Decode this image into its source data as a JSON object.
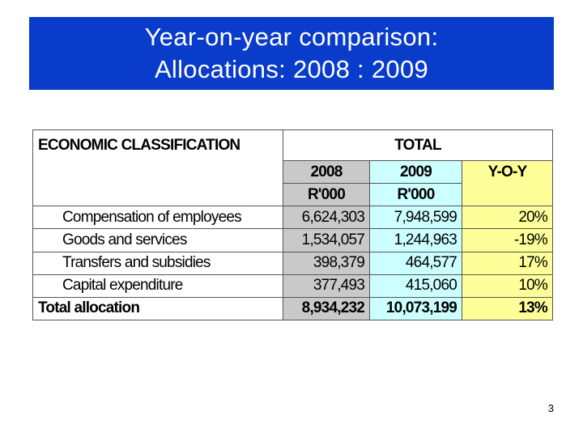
{
  "title": {
    "line1": "Year-on-year comparison:",
    "line2": "Allocations: 2008 : 2009"
  },
  "table": {
    "classification_header": "ECONOMIC CLASSIFICATION",
    "total_header": "TOTAL",
    "year_2008": "2008",
    "year_2009": "2009",
    "yoy": "Y-O-Y",
    "unit_2008": "R'000",
    "unit_2009": "R'000",
    "rows": [
      {
        "label": "Compensation of employees",
        "v2008": "6,624,303",
        "v2009": "7,948,599",
        "yoy": "20%"
      },
      {
        "label": "Goods and services",
        "v2008": "1,534,057",
        "v2009": "1,244,963",
        "yoy": "-19%"
      },
      {
        "label": "Transfers and subsidies",
        "v2008": "398,379",
        "v2009": "464,577",
        "yoy": "17%"
      },
      {
        "label": "Capital expenditure",
        "v2008": "377,493",
        "v2009": "415,060",
        "yoy": "10%"
      }
    ],
    "total": {
      "label": "Total allocation",
      "v2008": "8,934,232",
      "v2009": "10,073,199",
      "yoy": "13%"
    }
  },
  "page_number": "3",
  "colors": {
    "title_bg": "#0a3ccc",
    "col_2008": "#c9c9c9",
    "col_2009": "#ccffff",
    "col_yoy": "#ffff99"
  }
}
